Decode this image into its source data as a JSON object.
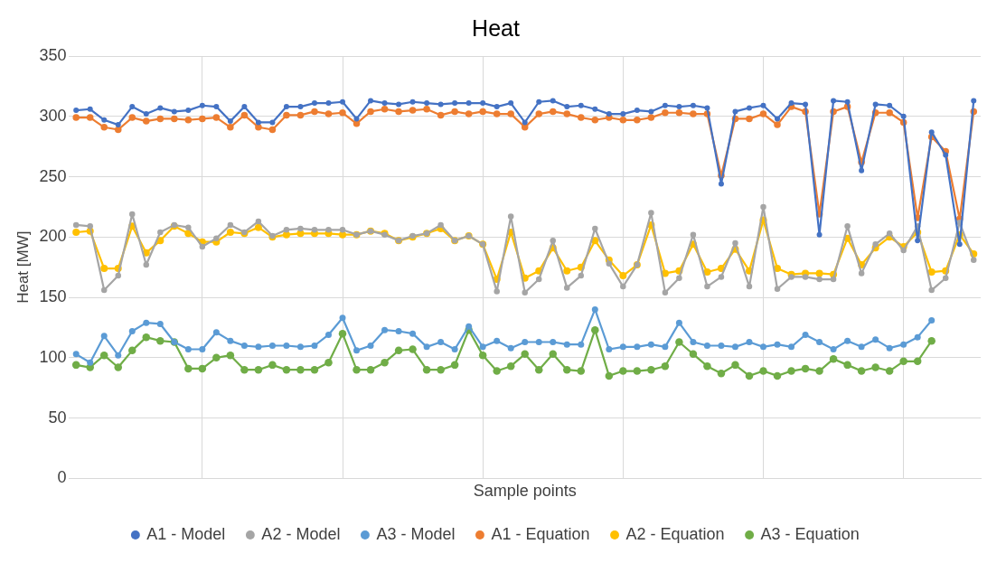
{
  "chart_data": {
    "type": "line",
    "title": "Heat",
    "xlabel": "Sample points",
    "ylabel": "Heat [MW]",
    "categories": [
      null,
      null,
      null,
      null,
      null,
      null,
      null,
      null,
      null,
      null,
      null,
      null,
      null,
      null,
      null,
      null,
      null,
      null,
      null,
      null,
      null,
      null,
      null,
      null,
      null,
      null,
      null,
      null,
      null,
      null,
      null,
      null,
      null,
      null,
      null,
      null,
      null,
      null,
      null,
      null,
      null,
      null,
      null,
      null,
      null,
      null,
      null,
      null,
      null,
      null,
      null,
      null,
      null,
      null,
      null,
      null,
      null,
      null,
      null,
      null,
      null,
      null,
      null,
      null,
      null
    ],
    "series": [
      {
        "name": "A1 - Model",
        "color": "#4472c4",
        "values": [
          305,
          306,
          297,
          293,
          308,
          302,
          307,
          304,
          305,
          309,
          308,
          296,
          308,
          295,
          295,
          308,
          308,
          311,
          311,
          312,
          298,
          313,
          311,
          310,
          312,
          311,
          310,
          311,
          311,
          311,
          308,
          311,
          295,
          312,
          313,
          308,
          309,
          306,
          302,
          302,
          305,
          304,
          309,
          308,
          309,
          307,
          244,
          304,
          307,
          309,
          298,
          311,
          310,
          202,
          313,
          312,
          255,
          310,
          309,
          300,
          197,
          287,
          268,
          194,
          313
        ]
      },
      {
        "name": "A2 - Model",
        "color": "#a5a5a5",
        "values": [
          210,
          209,
          156,
          168,
          219,
          177,
          204,
          210,
          208,
          192,
          199,
          210,
          204,
          213,
          201,
          206,
          207,
          206,
          206,
          206,
          202,
          205,
          202,
          197,
          201,
          203,
          210,
          197,
          201,
          194,
          155,
          217,
          154,
          165,
          197,
          158,
          168,
          207,
          178,
          159,
          177,
          220,
          154,
          166,
          202,
          159,
          167,
          195,
          159,
          225,
          157,
          167,
          167,
          165,
          165,
          209,
          170,
          194,
          203,
          189,
          209,
          156,
          166,
          212,
          181
        ]
      },
      {
        "name": "A3 - Model",
        "color": "#5b9bd5",
        "values": [
          103,
          96,
          118,
          102,
          122,
          129,
          128,
          113,
          107,
          107,
          121,
          114,
          110,
          109,
          110,
          110,
          109,
          110,
          119,
          133,
          106,
          110,
          123,
          122,
          120,
          109,
          113,
          107,
          126,
          109,
          114,
          108,
          113,
          113,
          113,
          111,
          111,
          140,
          107,
          109,
          109,
          111,
          109,
          129,
          113,
          110,
          110,
          109,
          113,
          109,
          111,
          109,
          119,
          113,
          107,
          114,
          109,
          115,
          108,
          111,
          117,
          131,
          null,
          null,
          null
        ]
      },
      {
        "name": "A1 - Equation",
        "color": "#ed7d31",
        "values": [
          299,
          299,
          291,
          289,
          299,
          296,
          298,
          298,
          297,
          298,
          299,
          291,
          301,
          291,
          289,
          301,
          301,
          304,
          302,
          303,
          294,
          304,
          306,
          304,
          305,
          306,
          301,
          304,
          302,
          304,
          302,
          302,
          291,
          302,
          304,
          302,
          299,
          297,
          299,
          297,
          297,
          299,
          303,
          303,
          302,
          302,
          251,
          298,
          298,
          302,
          293,
          308,
          304,
          219,
          304,
          308,
          262,
          303,
          303,
          295,
          216,
          283,
          271,
          215,
          304
        ]
      },
      {
        "name": "A2 - Equation",
        "color": "#ffc000",
        "values": [
          204,
          205,
          174,
          174,
          209,
          187,
          197,
          209,
          203,
          196,
          196,
          204,
          203,
          208,
          200,
          202,
          203,
          203,
          203,
          202,
          202,
          205,
          203,
          197,
          200,
          203,
          207,
          197,
          201,
          194,
          165,
          204,
          166,
          172,
          191,
          172,
          175,
          197,
          181,
          168,
          177,
          210,
          170,
          172,
          194,
          171,
          174,
          190,
          172,
          214,
          174,
          169,
          170,
          170,
          169,
          199,
          177,
          191,
          200,
          192,
          204,
          171,
          172,
          202,
          186
        ]
      },
      {
        "name": "A3 - Equation",
        "color": "#70ad47",
        "values": [
          94,
          92,
          102,
          92,
          106,
          117,
          114,
          113,
          91,
          91,
          100,
          102,
          90,
          90,
          94,
          90,
          90,
          90,
          96,
          120,
          90,
          90,
          96,
          106,
          107,
          90,
          90,
          94,
          123,
          102,
          89,
          93,
          103,
          90,
          103,
          90,
          89,
          123,
          85,
          89,
          89,
          90,
          93,
          113,
          103,
          93,
          87,
          94,
          85,
          89,
          85,
          89,
          91,
          89,
          99,
          94,
          89,
          92,
          89,
          97,
          97,
          114,
          null,
          null,
          null
        ]
      }
    ],
    "ylim": [
      0,
      350
    ],
    "yticks": [
      0,
      50,
      100,
      150,
      200,
      250,
      300,
      350
    ],
    "grid": true,
    "legend": "bottom",
    "marker": "circle",
    "line_style": "solid"
  }
}
